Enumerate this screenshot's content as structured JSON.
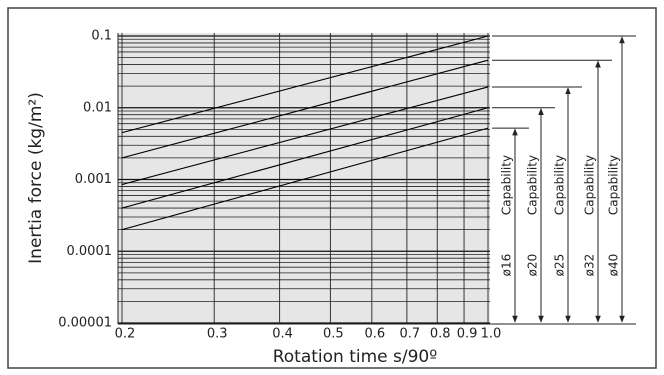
{
  "chart_data": {
    "type": "line",
    "ylabel": "Inertia force (kg/m²)",
    "xlabel": "Rotation time s/90º",
    "log_x": true,
    "log_y": true,
    "grid": true,
    "xlim": [
      0.2,
      1
    ],
    "ylim": [
      1e-05,
      0.1
    ],
    "xticks": [
      0.2,
      0.3,
      0.4,
      0.5,
      0.6,
      0.7,
      0.8,
      0.9,
      {
        "value": 1,
        "label": "1.0"
      }
    ],
    "yticks": [
      1e-05,
      0.0001,
      0.001,
      0.01,
      0.1
    ],
    "x": [
      0.2,
      1
    ],
    "capability_label": "Capability",
    "series": [
      {
        "name": "ø16",
        "color": "#000000",
        "values": [
          0.0002,
          0.0052
        ]
      },
      {
        "name": "ø20",
        "color": "#000000",
        "values": [
          0.0004,
          0.01
        ]
      },
      {
        "name": "ø25",
        "color": "#000000",
        "values": [
          0.00085,
          0.0195
        ]
      },
      {
        "name": "ø32",
        "color": "#000000",
        "values": [
          0.002,
          0.046
        ]
      },
      {
        "name": "ø40",
        "color": "#000000",
        "values": [
          0.0045,
          0.1
        ]
      }
    ]
  }
}
